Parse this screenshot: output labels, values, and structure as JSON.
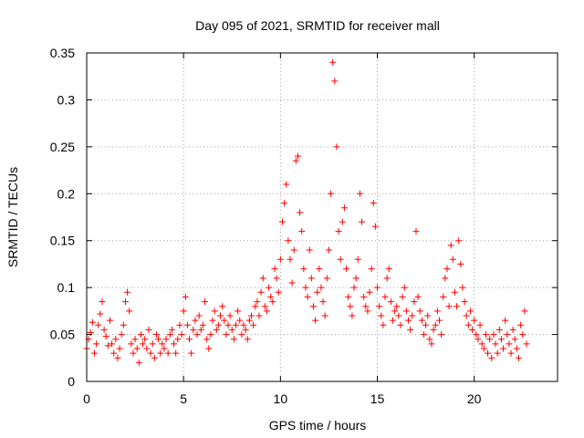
{
  "chart_data": {
    "type": "scatter",
    "title": "Day 095 of 2021, SRMTID for receiver mall",
    "xlabel": "GPS time / hours",
    "ylabel": "SRMTID / TECUs",
    "xlim": [
      0,
      24.3
    ],
    "ylim": [
      0,
      0.35
    ],
    "x_ticks": [
      0,
      5,
      10,
      15,
      20
    ],
    "x_tick_labels": [
      "0",
      "5",
      "10",
      "15",
      "20"
    ],
    "y_ticks": [
      0,
      0.05,
      0.1,
      0.15,
      0.2,
      0.25,
      0.3,
      0.35
    ],
    "y_tick_labels": [
      "0",
      "0.05",
      "0.1",
      "0.15",
      "0.2",
      "0.25",
      "0.3",
      "0.35"
    ],
    "grid": true,
    "marker": "+",
    "color": "#ff0000",
    "x_range_observed": [
      0,
      22.7
    ],
    "series": [
      {
        "name": "SRMTID",
        "points": [
          [
            0.0,
            0.035
          ],
          [
            0.1,
            0.045
          ],
          [
            0.2,
            0.052
          ],
          [
            0.3,
            0.063
          ],
          [
            0.4,
            0.03
          ],
          [
            0.5,
            0.04
          ],
          [
            0.6,
            0.06
          ],
          [
            0.7,
            0.072
          ],
          [
            0.8,
            0.085
          ],
          [
            0.9,
            0.055
          ],
          [
            1.0,
            0.048
          ],
          [
            1.1,
            0.038
          ],
          [
            1.2,
            0.065
          ],
          [
            1.3,
            0.04
          ],
          [
            1.4,
            0.03
          ],
          [
            1.5,
            0.045
          ],
          [
            1.6,
            0.025
          ],
          [
            1.7,
            0.035
          ],
          [
            1.8,
            0.05
          ],
          [
            1.9,
            0.06
          ],
          [
            2.0,
            0.085
          ],
          [
            2.1,
            0.095
          ],
          [
            2.2,
            0.075
          ],
          [
            2.3,
            0.04
          ],
          [
            2.4,
            0.03
          ],
          [
            2.5,
            0.045
          ],
          [
            2.6,
            0.035
          ],
          [
            2.7,
            0.02
          ],
          [
            2.8,
            0.05
          ],
          [
            2.9,
            0.04
          ],
          [
            3.0,
            0.045
          ],
          [
            3.1,
            0.035
          ],
          [
            3.2,
            0.055
          ],
          [
            3.3,
            0.03
          ],
          [
            3.4,
            0.04
          ],
          [
            3.5,
            0.025
          ],
          [
            3.6,
            0.05
          ],
          [
            3.7,
            0.045
          ],
          [
            3.8,
            0.03
          ],
          [
            3.9,
            0.04
          ],
          [
            4.0,
            0.035
          ],
          [
            4.1,
            0.045
          ],
          [
            4.2,
            0.03
          ],
          [
            4.3,
            0.05
          ],
          [
            4.4,
            0.055
          ],
          [
            4.5,
            0.04
          ],
          [
            4.6,
            0.03
          ],
          [
            4.7,
            0.045
          ],
          [
            4.8,
            0.06
          ],
          [
            4.9,
            0.05
          ],
          [
            5.0,
            0.075
          ],
          [
            5.1,
            0.09
          ],
          [
            5.2,
            0.06
          ],
          [
            5.3,
            0.045
          ],
          [
            5.4,
            0.03
          ],
          [
            5.5,
            0.055
          ],
          [
            5.6,
            0.065
          ],
          [
            5.7,
            0.05
          ],
          [
            5.8,
            0.07
          ],
          [
            5.9,
            0.055
          ],
          [
            6.0,
            0.06
          ],
          [
            6.1,
            0.085
          ],
          [
            6.2,
            0.045
          ],
          [
            6.3,
            0.035
          ],
          [
            6.4,
            0.05
          ],
          [
            6.5,
            0.065
          ],
          [
            6.6,
            0.075
          ],
          [
            6.7,
            0.055
          ],
          [
            6.8,
            0.06
          ],
          [
            6.9,
            0.07
          ],
          [
            7.0,
            0.08
          ],
          [
            7.1,
            0.065
          ],
          [
            7.2,
            0.05
          ],
          [
            7.3,
            0.06
          ],
          [
            7.4,
            0.07
          ],
          [
            7.5,
            0.055
          ],
          [
            7.6,
            0.045
          ],
          [
            7.7,
            0.06
          ],
          [
            7.8,
            0.075
          ],
          [
            7.9,
            0.065
          ],
          [
            8.0,
            0.05
          ],
          [
            8.1,
            0.06
          ],
          [
            8.2,
            0.055
          ],
          [
            8.3,
            0.045
          ],
          [
            8.4,
            0.065
          ],
          [
            8.5,
            0.07
          ],
          [
            8.6,
            0.06
          ],
          [
            8.7,
            0.08
          ],
          [
            8.8,
            0.085
          ],
          [
            8.9,
            0.07
          ],
          [
            9.0,
            0.095
          ],
          [
            9.1,
            0.11
          ],
          [
            9.2,
            0.08
          ],
          [
            9.3,
            0.075
          ],
          [
            9.4,
            0.1
          ],
          [
            9.5,
            0.09
          ],
          [
            9.6,
            0.085
          ],
          [
            9.7,
            0.12
          ],
          [
            9.8,
            0.11
          ],
          [
            9.9,
            0.095
          ],
          [
            10.0,
            0.13
          ],
          [
            10.1,
            0.17
          ],
          [
            10.2,
            0.19
          ],
          [
            10.3,
            0.21
          ],
          [
            10.4,
            0.15
          ],
          [
            10.5,
            0.13
          ],
          [
            10.6,
            0.105
          ],
          [
            10.7,
            0.14
          ],
          [
            10.8,
            0.235
          ],
          [
            10.9,
            0.24
          ],
          [
            11.0,
            0.18
          ],
          [
            11.1,
            0.16
          ],
          [
            11.2,
            0.12
          ],
          [
            11.3,
            0.1
          ],
          [
            11.4,
            0.09
          ],
          [
            11.5,
            0.14
          ],
          [
            11.6,
            0.11
          ],
          [
            11.7,
            0.08
          ],
          [
            11.8,
            0.065
          ],
          [
            11.9,
            0.095
          ],
          [
            12.0,
            0.12
          ],
          [
            12.1,
            0.1
          ],
          [
            12.2,
            0.085
          ],
          [
            12.3,
            0.07
          ],
          [
            12.4,
            0.11
          ],
          [
            12.5,
            0.14
          ],
          [
            12.6,
            0.2
          ],
          [
            12.7,
            0.34
          ],
          [
            12.8,
            0.32
          ],
          [
            12.9,
            0.25
          ],
          [
            13.0,
            0.16
          ],
          [
            13.1,
            0.13
          ],
          [
            13.2,
            0.17
          ],
          [
            13.3,
            0.185
          ],
          [
            13.4,
            0.12
          ],
          [
            13.5,
            0.09
          ],
          [
            13.6,
            0.08
          ],
          [
            13.7,
            0.07
          ],
          [
            13.8,
            0.1
          ],
          [
            13.9,
            0.11
          ],
          [
            14.0,
            0.13
          ],
          [
            14.1,
            0.2
          ],
          [
            14.2,
            0.17
          ],
          [
            14.3,
            0.09
          ],
          [
            14.4,
            0.08
          ],
          [
            14.5,
            0.075
          ],
          [
            14.6,
            0.095
          ],
          [
            14.7,
            0.12
          ],
          [
            14.8,
            0.19
          ],
          [
            14.9,
            0.165
          ],
          [
            15.0,
            0.1
          ],
          [
            15.1,
            0.08
          ],
          [
            15.2,
            0.07
          ],
          [
            15.3,
            0.06
          ],
          [
            15.4,
            0.09
          ],
          [
            15.5,
            0.11
          ],
          [
            15.6,
            0.12
          ],
          [
            15.7,
            0.085
          ],
          [
            15.8,
            0.065
          ],
          [
            15.9,
            0.075
          ],
          [
            16.0,
            0.08
          ],
          [
            16.1,
            0.07
          ],
          [
            16.2,
            0.06
          ],
          [
            16.3,
            0.09
          ],
          [
            16.4,
            0.1
          ],
          [
            16.5,
            0.075
          ],
          [
            16.6,
            0.065
          ],
          [
            16.7,
            0.055
          ],
          [
            16.8,
            0.07
          ],
          [
            16.9,
            0.085
          ],
          [
            17.0,
            0.16
          ],
          [
            17.1,
            0.09
          ],
          [
            17.2,
            0.075
          ],
          [
            17.3,
            0.065
          ],
          [
            17.4,
            0.05
          ],
          [
            17.5,
            0.06
          ],
          [
            17.6,
            0.07
          ],
          [
            17.7,
            0.045
          ],
          [
            17.8,
            0.04
          ],
          [
            17.9,
            0.055
          ],
          [
            18.0,
            0.06
          ],
          [
            18.1,
            0.075
          ],
          [
            18.2,
            0.065
          ],
          [
            18.3,
            0.05
          ],
          [
            18.4,
            0.09
          ],
          [
            18.5,
            0.11
          ],
          [
            18.6,
            0.12
          ],
          [
            18.7,
            0.08
          ],
          [
            18.8,
            0.145
          ],
          [
            18.9,
            0.13
          ],
          [
            19.0,
            0.095
          ],
          [
            19.1,
            0.08
          ],
          [
            19.2,
            0.15
          ],
          [
            19.3,
            0.125
          ],
          [
            19.4,
            0.1
          ],
          [
            19.5,
            0.085
          ],
          [
            19.6,
            0.07
          ],
          [
            19.7,
            0.06
          ],
          [
            19.8,
            0.075
          ],
          [
            19.9,
            0.055
          ],
          [
            20.0,
            0.065
          ],
          [
            20.1,
            0.05
          ],
          [
            20.2,
            0.045
          ],
          [
            20.3,
            0.06
          ],
          [
            20.4,
            0.04
          ],
          [
            20.5,
            0.035
          ],
          [
            20.6,
            0.05
          ],
          [
            20.7,
            0.03
          ],
          [
            20.8,
            0.045
          ],
          [
            20.9,
            0.025
          ],
          [
            21.0,
            0.05
          ],
          [
            21.1,
            0.04
          ],
          [
            21.2,
            0.03
          ],
          [
            21.3,
            0.055
          ],
          [
            21.4,
            0.045
          ],
          [
            21.5,
            0.035
          ],
          [
            21.6,
            0.065
          ],
          [
            21.7,
            0.05
          ],
          [
            21.8,
            0.04
          ],
          [
            21.9,
            0.03
          ],
          [
            22.0,
            0.055
          ],
          [
            22.1,
            0.045
          ],
          [
            22.2,
            0.035
          ],
          [
            22.3,
            0.025
          ],
          [
            22.4,
            0.06
          ],
          [
            22.5,
            0.05
          ],
          [
            22.6,
            0.075
          ],
          [
            22.7,
            0.04
          ]
        ]
      }
    ]
  }
}
